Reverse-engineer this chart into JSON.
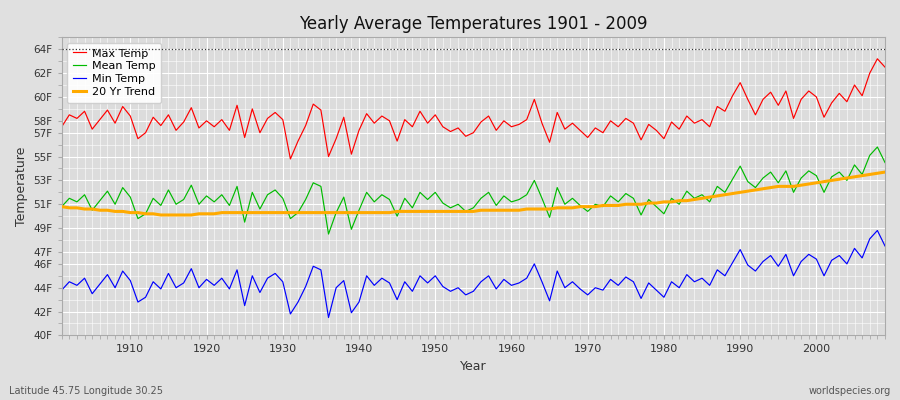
{
  "title": "Yearly Average Temperatures 1901 - 2009",
  "xlabel": "Year",
  "ylabel": "Temperature",
  "xlim": [
    1901,
    2009
  ],
  "ylim": [
    40,
    65
  ],
  "background_color": "#e0e0e0",
  "plot_bg_color": "#dcdcdc",
  "grid_color": "#ffffff",
  "legend_labels": [
    "Max Temp",
    "Mean Temp",
    "Min Temp",
    "20 Yr Trend"
  ],
  "legend_colors": [
    "#ff0000",
    "#00bb00",
    "#0000ff",
    "#ffaa00"
  ],
  "max_temp": [
    57.5,
    58.5,
    58.2,
    58.8,
    57.3,
    58.1,
    58.9,
    57.8,
    59.2,
    58.4,
    56.5,
    57.0,
    58.3,
    57.6,
    58.5,
    57.2,
    57.9,
    59.1,
    57.4,
    58.0,
    57.5,
    58.1,
    57.2,
    59.3,
    56.6,
    59.0,
    57.0,
    58.2,
    58.7,
    58.1,
    54.8,
    56.3,
    57.6,
    59.4,
    58.9,
    55.0,
    56.5,
    58.3,
    55.2,
    57.2,
    58.6,
    57.8,
    58.4,
    58.0,
    56.3,
    58.1,
    57.5,
    58.8,
    57.8,
    58.5,
    57.5,
    57.1,
    57.4,
    56.7,
    57.0,
    57.9,
    58.4,
    57.2,
    58.0,
    57.5,
    57.7,
    58.1,
    59.8,
    57.8,
    56.2,
    58.7,
    57.3,
    57.8,
    57.2,
    56.6,
    57.4,
    57.0,
    58.0,
    57.5,
    58.2,
    57.8,
    56.4,
    57.7,
    57.2,
    56.5,
    57.9,
    57.3,
    58.4,
    57.8,
    58.1,
    57.5,
    59.2,
    58.8,
    60.1,
    61.2,
    59.8,
    58.5,
    59.8,
    60.4,
    59.3,
    60.5,
    58.2,
    59.8,
    60.5,
    60.0,
    58.3,
    59.5,
    60.3,
    59.6,
    61.0,
    60.1,
    62.0,
    63.2,
    62.5
  ],
  "mean_temp": [
    50.8,
    51.5,
    51.2,
    51.8,
    50.5,
    51.3,
    52.1,
    51.0,
    52.4,
    51.6,
    49.8,
    50.2,
    51.5,
    50.9,
    52.2,
    51.0,
    51.4,
    52.6,
    51.0,
    51.7,
    51.2,
    51.8,
    50.9,
    52.5,
    49.5,
    52.0,
    50.6,
    51.8,
    52.2,
    51.5,
    49.8,
    50.3,
    51.4,
    52.8,
    52.5,
    48.5,
    50.3,
    51.6,
    48.9,
    50.5,
    52.0,
    51.2,
    51.8,
    51.4,
    50.0,
    51.5,
    50.7,
    52.0,
    51.4,
    52.0,
    51.1,
    50.7,
    51.0,
    50.4,
    50.7,
    51.5,
    52.0,
    50.9,
    51.7,
    51.2,
    51.4,
    51.8,
    53.0,
    51.5,
    49.9,
    52.4,
    51.0,
    51.5,
    50.9,
    50.4,
    51.0,
    50.8,
    51.7,
    51.2,
    51.9,
    51.5,
    50.1,
    51.4,
    50.8,
    50.2,
    51.5,
    51.0,
    52.1,
    51.5,
    51.8,
    51.2,
    52.5,
    52.0,
    53.1,
    54.2,
    52.9,
    52.4,
    53.2,
    53.7,
    52.8,
    53.8,
    52.0,
    53.2,
    53.8,
    53.4,
    52.0,
    53.3,
    53.7,
    53.0,
    54.3,
    53.5,
    55.1,
    55.8,
    54.5
  ],
  "min_temp": [
    43.8,
    44.5,
    44.2,
    44.8,
    43.5,
    44.3,
    45.1,
    44.0,
    45.4,
    44.6,
    42.8,
    43.2,
    44.5,
    43.9,
    45.2,
    44.0,
    44.4,
    45.6,
    44.0,
    44.7,
    44.2,
    44.8,
    43.9,
    45.5,
    42.5,
    45.0,
    43.6,
    44.8,
    45.2,
    44.5,
    41.8,
    42.8,
    44.1,
    45.8,
    45.5,
    41.5,
    44.0,
    44.6,
    41.9,
    42.8,
    45.0,
    44.2,
    44.8,
    44.4,
    43.0,
    44.5,
    43.7,
    45.0,
    44.4,
    45.0,
    44.1,
    43.7,
    44.0,
    43.4,
    43.7,
    44.5,
    45.0,
    43.9,
    44.7,
    44.2,
    44.4,
    44.8,
    46.0,
    44.5,
    42.9,
    45.4,
    44.0,
    44.5,
    43.9,
    43.4,
    44.0,
    43.8,
    44.7,
    44.2,
    44.9,
    44.5,
    43.1,
    44.4,
    43.8,
    43.2,
    44.5,
    44.0,
    45.1,
    44.5,
    44.8,
    44.2,
    45.5,
    45.0,
    46.1,
    47.2,
    45.9,
    45.4,
    46.2,
    46.7,
    45.8,
    46.8,
    45.0,
    46.2,
    46.8,
    46.4,
    45.0,
    46.3,
    46.7,
    46.0,
    47.3,
    46.5,
    48.1,
    48.8,
    47.5
  ],
  "trend_temp": [
    50.8,
    50.7,
    50.7,
    50.6,
    50.6,
    50.5,
    50.5,
    50.4,
    50.4,
    50.3,
    50.3,
    50.2,
    50.2,
    50.1,
    50.1,
    50.1,
    50.1,
    50.1,
    50.2,
    50.2,
    50.2,
    50.3,
    50.3,
    50.3,
    50.3,
    50.3,
    50.3,
    50.3,
    50.3,
    50.3,
    50.3,
    50.3,
    50.3,
    50.3,
    50.3,
    50.3,
    50.3,
    50.3,
    50.3,
    50.3,
    50.3,
    50.3,
    50.3,
    50.3,
    50.4,
    50.4,
    50.4,
    50.4,
    50.4,
    50.4,
    50.4,
    50.4,
    50.4,
    50.4,
    50.4,
    50.5,
    50.5,
    50.5,
    50.5,
    50.5,
    50.5,
    50.6,
    50.6,
    50.6,
    50.6,
    50.7,
    50.7,
    50.7,
    50.8,
    50.8,
    50.8,
    50.9,
    50.9,
    50.9,
    51.0,
    51.0,
    51.0,
    51.1,
    51.1,
    51.2,
    51.2,
    51.3,
    51.3,
    51.4,
    51.5,
    51.6,
    51.7,
    51.8,
    51.9,
    52.0,
    52.1,
    52.2,
    52.3,
    52.4,
    52.5,
    52.5,
    52.5,
    52.6,
    52.7,
    52.8,
    52.9,
    53.0,
    53.1,
    53.2,
    53.3,
    53.4,
    53.5,
    53.6,
    53.7
  ],
  "footnote_left": "Latitude 45.75 Longitude 30.25",
  "footnote_right": "worldspecies.org"
}
